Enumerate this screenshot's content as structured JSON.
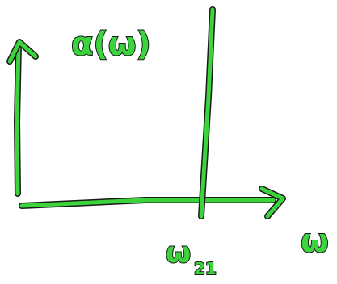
{
  "labels": {
    "y_axis": "α(ω)",
    "x_axis": "ω",
    "marker": {
      "symbol": "ω",
      "subscript": "21"
    }
  }
}
